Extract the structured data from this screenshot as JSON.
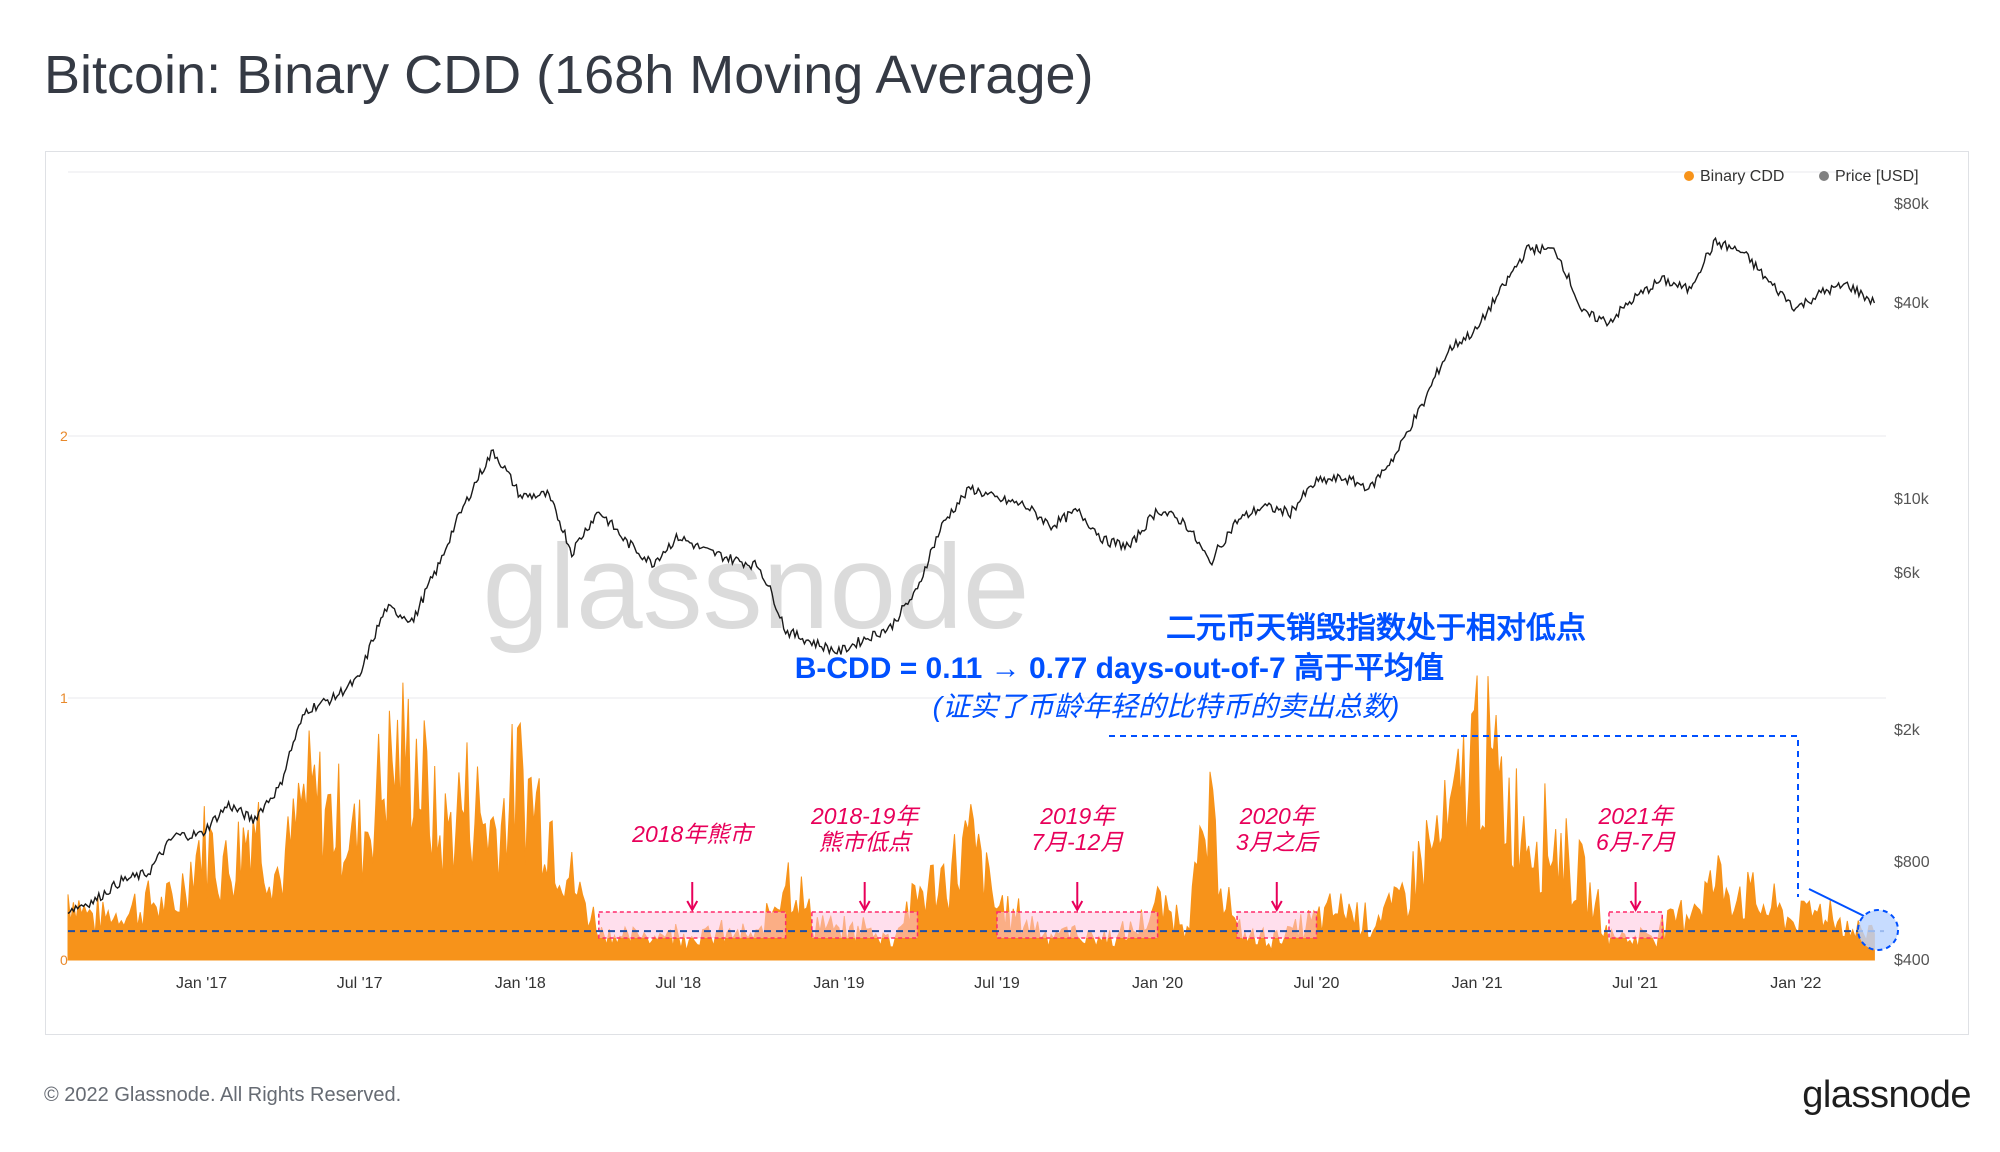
{
  "title": "Bitcoin: Binary CDD (168h Moving Average)",
  "footer": {
    "copyright": "© 2022 Glassnode. All Rights Reserved.",
    "logo": "glassnode"
  },
  "watermark": "glassnode",
  "colors": {
    "cdd": "#f7931a",
    "price": "#1a1a1a",
    "annotation": "#e8005a",
    "highlight": "#0050ff",
    "threshold": "#1f4fa8"
  },
  "chart_data": {
    "type": "area",
    "x_ticks": [
      "Jan '17",
      "Jul '17",
      "Jan '18",
      "Jul '18",
      "Jan '19",
      "Jul '19",
      "Jan '20",
      "Jul '20",
      "Jan '21",
      "Jul '21",
      "Jan '22"
    ],
    "left_axis": {
      "ticks": [
        "0",
        "1",
        "2"
      ],
      "ylim": [
        0,
        2.5
      ]
    },
    "right_axis": {
      "ticks": [
        "$400",
        "$800",
        "$2k",
        "$6k",
        "$10k",
        "$40k",
        "$80k"
      ],
      "scale": "log"
    },
    "legend": [
      "Binary CDD",
      "Price [USD]"
    ],
    "threshold_value": 0.11,
    "series": [
      {
        "name": "Binary CDD",
        "axis": "left",
        "points": [
          [
            "2016-08-01",
            0.25
          ],
          [
            "2016-09-01",
            0.16
          ],
          [
            "2016-10-01",
            0.18
          ],
          [
            "2016-11-01",
            0.22
          ],
          [
            "2016-12-01",
            0.2
          ],
          [
            "2017-01-01",
            0.45
          ],
          [
            "2017-02-01",
            0.35
          ],
          [
            "2017-03-01",
            0.55
          ],
          [
            "2017-04-01",
            0.3
          ],
          [
            "2017-05-01",
            0.62
          ],
          [
            "2017-06-01",
            0.55
          ],
          [
            "2017-07-01",
            0.45
          ],
          [
            "2017-08-01",
            0.73
          ],
          [
            "2017-09-01",
            0.8
          ],
          [
            "2017-10-01",
            0.45
          ],
          [
            "2017-11-01",
            0.62
          ],
          [
            "2017-12-01",
            0.5
          ],
          [
            "2018-01-01",
            0.68
          ],
          [
            "2018-02-01",
            0.55
          ],
          [
            "2018-03-01",
            0.3
          ],
          [
            "2018-04-01",
            0.12
          ],
          [
            "2018-05-01",
            0.08
          ],
          [
            "2018-06-01",
            0.1
          ],
          [
            "2018-07-01",
            0.1
          ],
          [
            "2018-08-01",
            0.09
          ],
          [
            "2018-09-01",
            0.1
          ],
          [
            "2018-10-01",
            0.08
          ],
          [
            "2018-11-01",
            0.35
          ],
          [
            "2018-12-01",
            0.15
          ],
          [
            "2019-01-01",
            0.1
          ],
          [
            "2019-02-01",
            0.12
          ],
          [
            "2019-03-01",
            0.08
          ],
          [
            "2019-04-01",
            0.25
          ],
          [
            "2019-05-01",
            0.3
          ],
          [
            "2019-06-01",
            0.45
          ],
          [
            "2019-07-01",
            0.2
          ],
          [
            "2019-08-01",
            0.15
          ],
          [
            "2019-09-01",
            0.1
          ],
          [
            "2019-10-01",
            0.1
          ],
          [
            "2019-11-01",
            0.08
          ],
          [
            "2019-12-01",
            0.1
          ],
          [
            "2020-01-01",
            0.2
          ],
          [
            "2020-02-01",
            0.15
          ],
          [
            "2020-03-01",
            0.5
          ],
          [
            "2020-04-01",
            0.1
          ],
          [
            "2020-05-01",
            0.08
          ],
          [
            "2020-06-01",
            0.1
          ],
          [
            "2020-07-01",
            0.15
          ],
          [
            "2020-08-01",
            0.2
          ],
          [
            "2020-09-01",
            0.15
          ],
          [
            "2020-10-01",
            0.2
          ],
          [
            "2020-11-01",
            0.4
          ],
          [
            "2020-12-01",
            0.5
          ],
          [
            "2021-01-01",
            0.85
          ],
          [
            "2021-02-01",
            0.6
          ],
          [
            "2021-03-01",
            0.5
          ],
          [
            "2021-04-01",
            0.45
          ],
          [
            "2021-05-01",
            0.3
          ],
          [
            "2021-06-01",
            0.1
          ],
          [
            "2021-07-01",
            0.08
          ],
          [
            "2021-08-01",
            0.12
          ],
          [
            "2021-09-01",
            0.2
          ],
          [
            "2021-10-01",
            0.3
          ],
          [
            "2021-11-01",
            0.25
          ],
          [
            "2021-12-01",
            0.2
          ],
          [
            "2022-01-01",
            0.15
          ],
          [
            "2022-02-01",
            0.2
          ],
          [
            "2022-03-01",
            0.12
          ],
          [
            "2022-04-01",
            0.1
          ]
        ]
      },
      {
        "name": "Price [USD]",
        "axis": "right",
        "points": [
          [
            "2016-08-01",
            570
          ],
          [
            "2016-09-01",
            610
          ],
          [
            "2016-10-01",
            700
          ],
          [
            "2016-11-01",
            740
          ],
          [
            "2016-12-01",
            960
          ],
          [
            "2017-01-01",
            970
          ],
          [
            "2017-02-01",
            1190
          ],
          [
            "2017-03-01",
            1070
          ],
          [
            "2017-04-01",
            1350
          ],
          [
            "2017-05-01",
            2300
          ],
          [
            "2017-06-01",
            2500
          ],
          [
            "2017-07-01",
            2870
          ],
          [
            "2017-08-01",
            4700
          ],
          [
            "2017-09-01",
            4300
          ],
          [
            "2017-10-01",
            6400
          ],
          [
            "2017-11-01",
            9900
          ],
          [
            "2017-12-01",
            14000
          ],
          [
            "2018-01-01",
            10200
          ],
          [
            "2018-02-01",
            10300
          ],
          [
            "2018-03-01",
            6900
          ],
          [
            "2018-04-01",
            9200
          ],
          [
            "2018-05-01",
            7500
          ],
          [
            "2018-06-01",
            6400
          ],
          [
            "2018-07-01",
            7700
          ],
          [
            "2018-08-01",
            7000
          ],
          [
            "2018-09-01",
            6600
          ],
          [
            "2018-10-01",
            6300
          ],
          [
            "2018-11-01",
            4000
          ],
          [
            "2018-12-01",
            3700
          ],
          [
            "2019-01-01",
            3450
          ],
          [
            "2019-02-01",
            3800
          ],
          [
            "2019-03-01",
            4100
          ],
          [
            "2019-04-01",
            5300
          ],
          [
            "2019-05-01",
            8500
          ],
          [
            "2019-06-01",
            10800
          ],
          [
            "2019-07-01",
            10000
          ],
          [
            "2019-08-01",
            9600
          ],
          [
            "2019-09-01",
            8300
          ],
          [
            "2019-10-01",
            9200
          ],
          [
            "2019-11-01",
            7500
          ],
          [
            "2019-12-01",
            7200
          ],
          [
            "2020-01-01",
            9300
          ],
          [
            "2020-02-01",
            8500
          ],
          [
            "2020-03-01",
            6400
          ],
          [
            "2020-04-01",
            8600
          ],
          [
            "2020-05-01",
            9500
          ],
          [
            "2020-06-01",
            9100
          ],
          [
            "2020-07-01",
            11300
          ],
          [
            "2020-08-01",
            11600
          ],
          [
            "2020-09-01",
            10800
          ],
          [
            "2020-10-01",
            13800
          ],
          [
            "2020-11-01",
            19700
          ],
          [
            "2020-12-01",
            29000
          ],
          [
            "2021-01-01",
            33100
          ],
          [
            "2021-02-01",
            45100
          ],
          [
            "2021-03-01",
            58800
          ],
          [
            "2021-04-01",
            57700
          ],
          [
            "2021-05-01",
            37300
          ],
          [
            "2021-06-01",
            35000
          ],
          [
            "2021-07-01",
            41500
          ],
          [
            "2021-08-01",
            47100
          ],
          [
            "2021-09-01",
            43800
          ],
          [
            "2021-10-01",
            61300
          ],
          [
            "2021-11-01",
            57000
          ],
          [
            "2021-12-01",
            46300
          ],
          [
            "2022-01-01",
            38500
          ],
          [
            "2022-02-01",
            43200
          ],
          [
            "2022-03-01",
            45500
          ],
          [
            "2022-04-01",
            40000
          ]
        ]
      }
    ],
    "annotations": [
      {
        "id": "bear2018",
        "lines": [
          "2018年熊市"
        ],
        "start": "2018-04-01",
        "end": "2018-11-01"
      },
      {
        "id": "bottom1819",
        "lines": [
          "2018-19年",
          "熊市低点"
        ],
        "start": "2018-12-01",
        "end": "2019-04-01"
      },
      {
        "id": "h2_2019",
        "lines": [
          "2019年",
          "7月-12月"
        ],
        "start": "2019-07-01",
        "end": "2020-01-01"
      },
      {
        "id": "after_mar2020",
        "lines": [
          "2020年",
          "3月之后"
        ],
        "start": "2020-04-01",
        "end": "2020-07-01"
      },
      {
        "id": "jun_jul_2021",
        "lines": [
          "2021年",
          "6月-7月"
        ],
        "start": "2021-06-01",
        "end": "2021-08-01"
      }
    ],
    "callout": {
      "line1": "二元币天销毁指数处于相对低点",
      "line2": "B-CDD = 0.11 → 0.77 days-out-of-7 高于平均值",
      "line3": "(证实了币龄年轻的比特币的卖出总数)"
    }
  }
}
